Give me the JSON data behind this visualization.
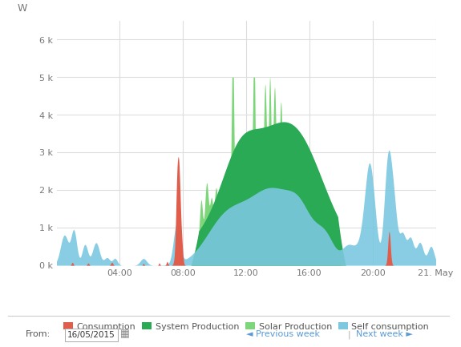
{
  "title": "",
  "ylabel": "W",
  "xlim": [
    0,
    24
  ],
  "ylim": [
    0,
    6500
  ],
  "yticks": [
    0,
    1000,
    2000,
    3000,
    4000,
    5000,
    6000
  ],
  "ytick_labels": [
    "0 k",
    "1 k",
    "2 k",
    "3 k",
    "4 k",
    "5 k",
    "6 k"
  ],
  "xticks": [
    4,
    8,
    12,
    16,
    20,
    24
  ],
  "xtick_labels": [
    "04:00",
    "08:00",
    "12:00",
    "16:00",
    "20:00",
    "21. May"
  ],
  "bg_color": "#ffffff",
  "grid_color": "#dddddd",
  "legend_labels": [
    "Consumption",
    "System Production",
    "Solar Production",
    "Self consumption"
  ],
  "legend_colors": [
    "#e05c4b",
    "#2aaa55",
    "#7ed67a",
    "#7bc8e0"
  ],
  "consumption_color": "#e05c4b",
  "system_production_color": "#2aaa55",
  "solar_production_color": "#7ed67a",
  "self_consumption_color": "#7bc8e0"
}
